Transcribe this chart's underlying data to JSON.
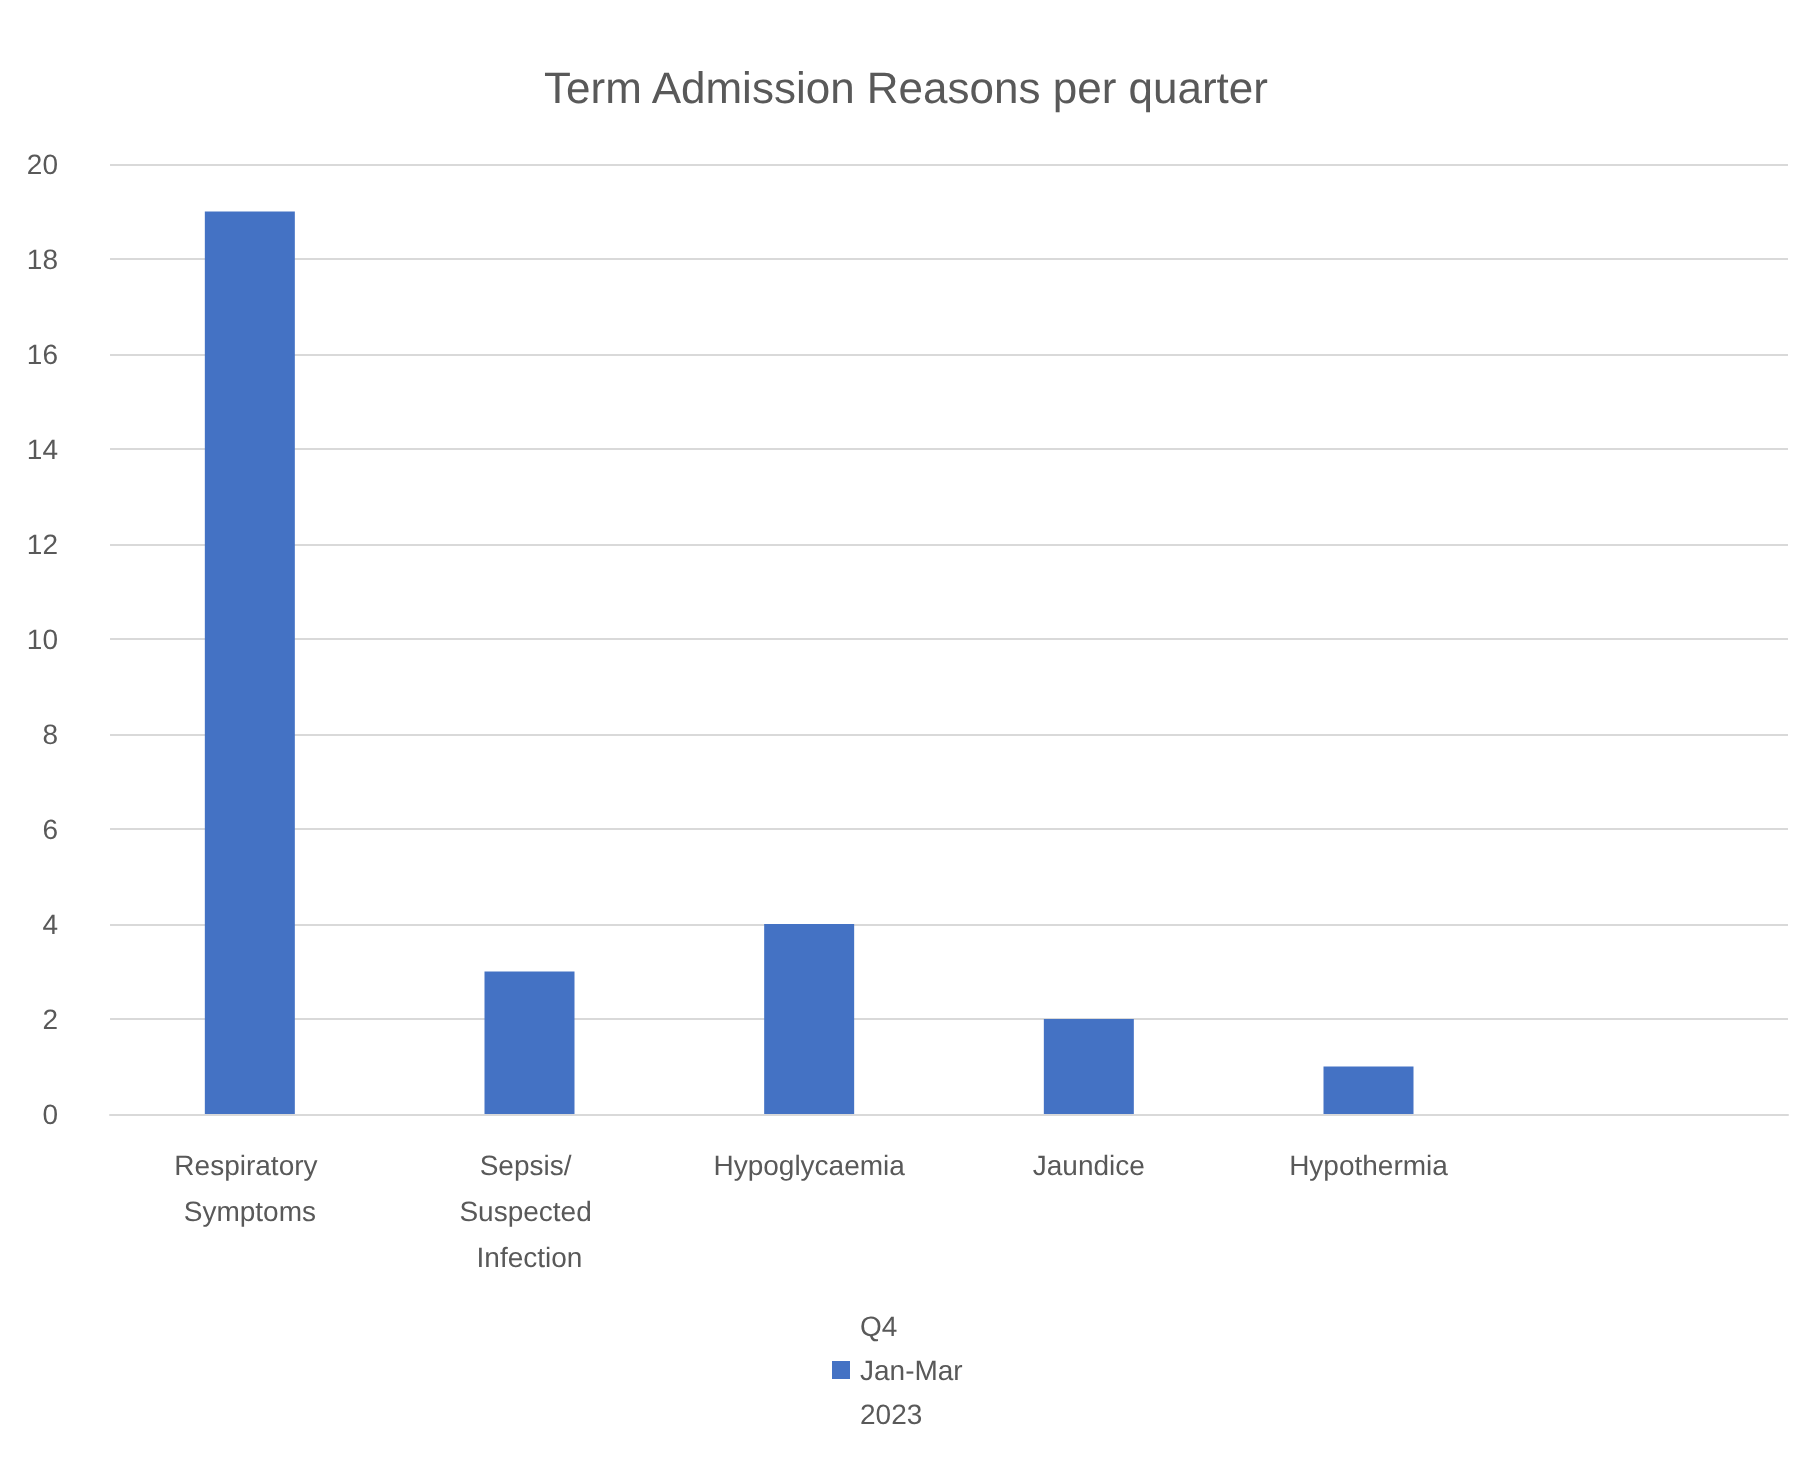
{
  "chart_data": {
    "type": "bar",
    "title": "Term Admission Reasons per quarter",
    "categories": [
      "Respiratory Symptoms",
      "Sepsis/ Suspected Infection",
      "Hypoglycaemia",
      "Jaundice",
      "Hypothermia",
      null
    ],
    "series": [
      {
        "name": "Q4 Jan-Mar 2023",
        "color": "#4472c4",
        "values": [
          19,
          3,
          4,
          2,
          1,
          null
        ]
      }
    ],
    "ylim": [
      0,
      20
    ],
    "yticks": [
      0,
      2,
      4,
      6,
      8,
      10,
      12,
      14,
      16,
      18,
      20
    ],
    "grid": "y",
    "legend": "bottom"
  }
}
